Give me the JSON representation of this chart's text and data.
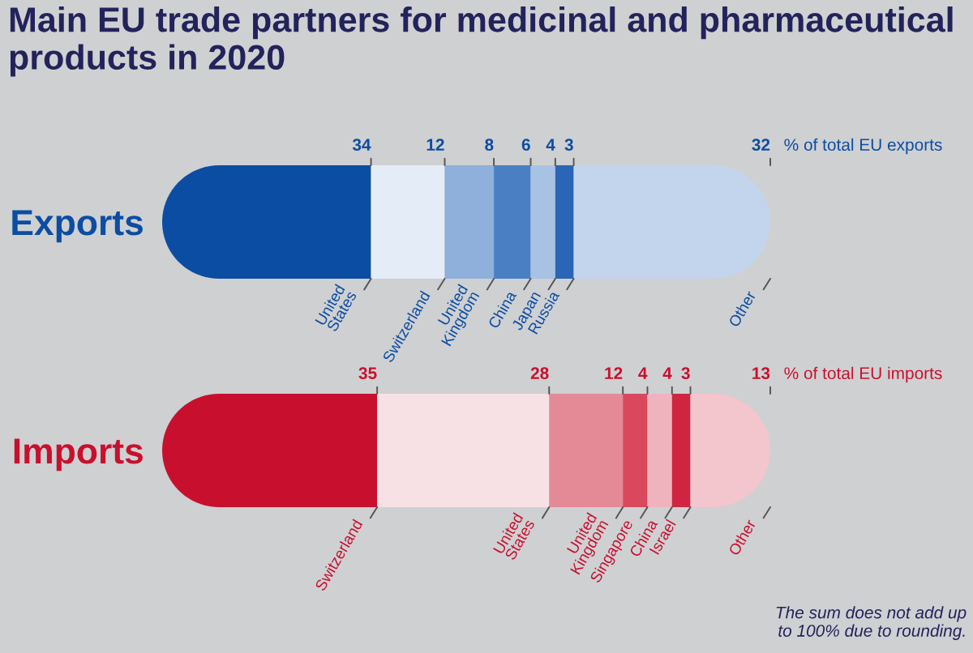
{
  "chart_data": [
    {
      "type": "bar",
      "orientation": "horizontal",
      "stacked": true,
      "title": "Main EU trade partners for medicinal and pharmaceutical products in 2020",
      "xlabel": "% of total EU exports",
      "categories": [
        "Exports"
      ],
      "tick_labels": "y",
      "data_labels": true,
      "series": [
        {
          "name": "United States",
          "color": "#0b4da2",
          "values": [
            34
          ]
        },
        {
          "name": "Switzerland",
          "color": "#e4edf7",
          "values": [
            12
          ]
        },
        {
          "name": "United Kingdom",
          "color": "#8eb0da",
          "values": [
            8
          ]
        },
        {
          "name": "China",
          "color": "#4b7fc3",
          "values": [
            6
          ]
        },
        {
          "name": "Japan",
          "color": "#a8c2e4",
          "values": [
            4
          ]
        },
        {
          "name": "Russia",
          "color": "#2b65b5",
          "values": [
            3
          ]
        },
        {
          "name": "Other",
          "color": "#c3d5ec",
          "values": [
            32
          ]
        }
      ]
    },
    {
      "type": "bar",
      "orientation": "horizontal",
      "stacked": true,
      "xlabel": "% of total EU imports",
      "categories": [
        "Imports"
      ],
      "tick_labels": "y",
      "data_labels": true,
      "annotations": [
        "The sum does not add up to 100% due to rounding."
      ],
      "series": [
        {
          "name": "Switzerland",
          "color": "#c8102e",
          "values": [
            35
          ]
        },
        {
          "name": "United States",
          "color": "#f8e1e5",
          "values": [
            28
          ]
        },
        {
          "name": "United Kingdom",
          "color": "#e48a97",
          "values": [
            12
          ]
        },
        {
          "name": "Singapore",
          "color": "#d9485c",
          "values": [
            4
          ]
        },
        {
          "name": "China",
          "color": "#efb3bd",
          "values": [
            4
          ]
        },
        {
          "name": "Israel",
          "color": "#d02541",
          "values": [
            3
          ]
        },
        {
          "name": "Other",
          "color": "#f3c5cd",
          "values": [
            13
          ]
        }
      ]
    }
  ]
}
